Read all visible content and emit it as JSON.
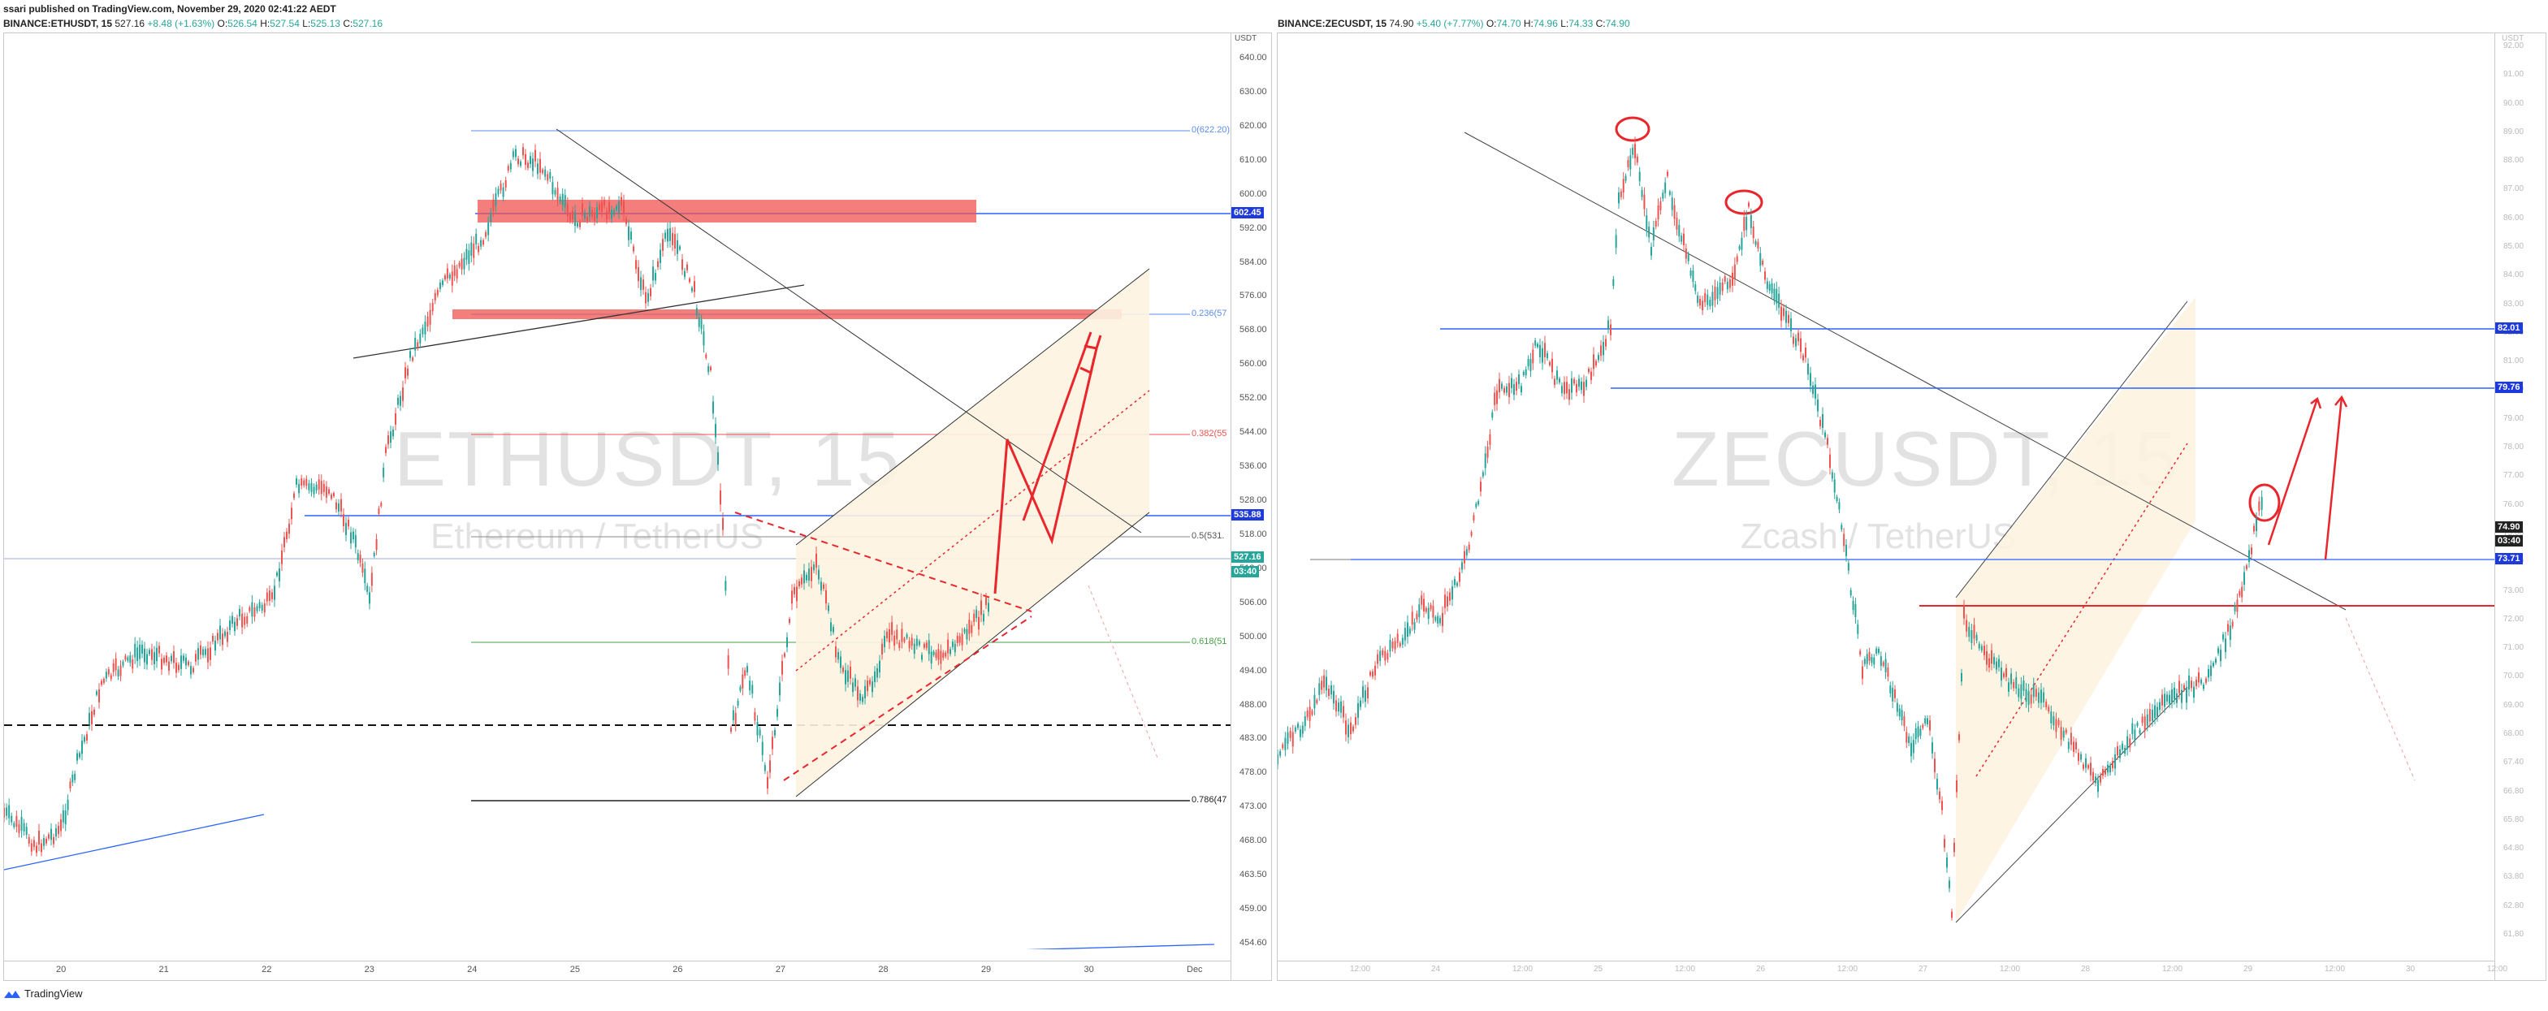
{
  "published": "ssari published on TradingView.com, November 29, 2020 02:41:22 AEDT",
  "left": {
    "symbol": "BINANCE:ETHUSDT, 15",
    "price": "527.16",
    "change": "+8.48 (+1.63%)",
    "o_label": "O:",
    "o": "526.54",
    "h_label": "H:",
    "h": "527.54",
    "l_label": "L:",
    "l": "525.13",
    "c_label": "C:",
    "c": "527.16",
    "watermark": "ETHUSDT, 15",
    "watermark_sub": "Ethereum / TetherUS",
    "currency": "USDT",
    "y_ticks": [
      "640.00",
      "630.00",
      "620.00",
      "610.00",
      "600.00",
      "592.00",
      "584.00",
      "576.00",
      "568.00",
      "560.00",
      "552.00",
      "544.00",
      "536.00",
      "528.00",
      "518.00",
      "512.00",
      "506.00",
      "500.00",
      "494.00",
      "488.00",
      "483.00",
      "478.00",
      "473.00",
      "468.00",
      "463.50",
      "459.00",
      "454.60"
    ],
    "x_ticks": [
      "20",
      "21",
      "22",
      "23",
      "24",
      "25",
      "26",
      "27",
      "28",
      "29",
      "30",
      "Dec"
    ],
    "badges": {
      "level1": "602.45",
      "level2": "535.88",
      "price": "527.16",
      "timer": "03:40"
    },
    "fib": {
      "f0": "0(622.20)",
      "f236": "0.236(57",
      "f382": "0.382(55",
      "f5": "0.5(531.",
      "f618": "0.618(51",
      "f786": "0.786(47"
    }
  },
  "right": {
    "symbol": "BINANCE:ZECUSDT, 15",
    "price": "74.90",
    "change": "+5.40 (+7.77%)",
    "o_label": "O:",
    "o": "74.70",
    "h_label": "H:",
    "h": "74.96",
    "l_label": "L:",
    "l": "74.33",
    "c_label": "C:",
    "c": "74.90",
    "watermark": "ZECUSDT, 15",
    "watermark_sub": "Zcash / TetherUS",
    "currency": "USDT",
    "y_ticks": [
      "92.00",
      "91.00",
      "90.00",
      "89.00",
      "88.00",
      "87.00",
      "86.00",
      "85.00",
      "84.00",
      "83.00",
      "82.00",
      "81.00",
      "80.00",
      "79.00",
      "78.00",
      "77.00",
      "76.00",
      "75.00",
      "74.00",
      "73.00",
      "72.00",
      "71.00",
      "70.00",
      "69.00",
      "68.00",
      "67.40",
      "66.80",
      "65.80",
      "64.80",
      "63.80",
      "62.80",
      "61.80"
    ],
    "x_ticks": [
      "12:00",
      "24",
      "12:00",
      "25",
      "12:00",
      "26",
      "12:00",
      "27",
      "12:00",
      "28",
      "12:00",
      "29",
      "12:00",
      "30",
      "12:00"
    ],
    "badges": {
      "level1": "82.01",
      "level2": "79.76",
      "price": "74.90",
      "timer": "03:40",
      "level3": "73.71"
    }
  },
  "footer": {
    "brand": "TradingView"
  },
  "colors": {
    "up": "#26a69a",
    "down": "#ef5350",
    "blue": "#2962ff",
    "badge_blue": "#1e3adb",
    "red": "#e8262b",
    "zone": "#fdf3e1"
  }
}
